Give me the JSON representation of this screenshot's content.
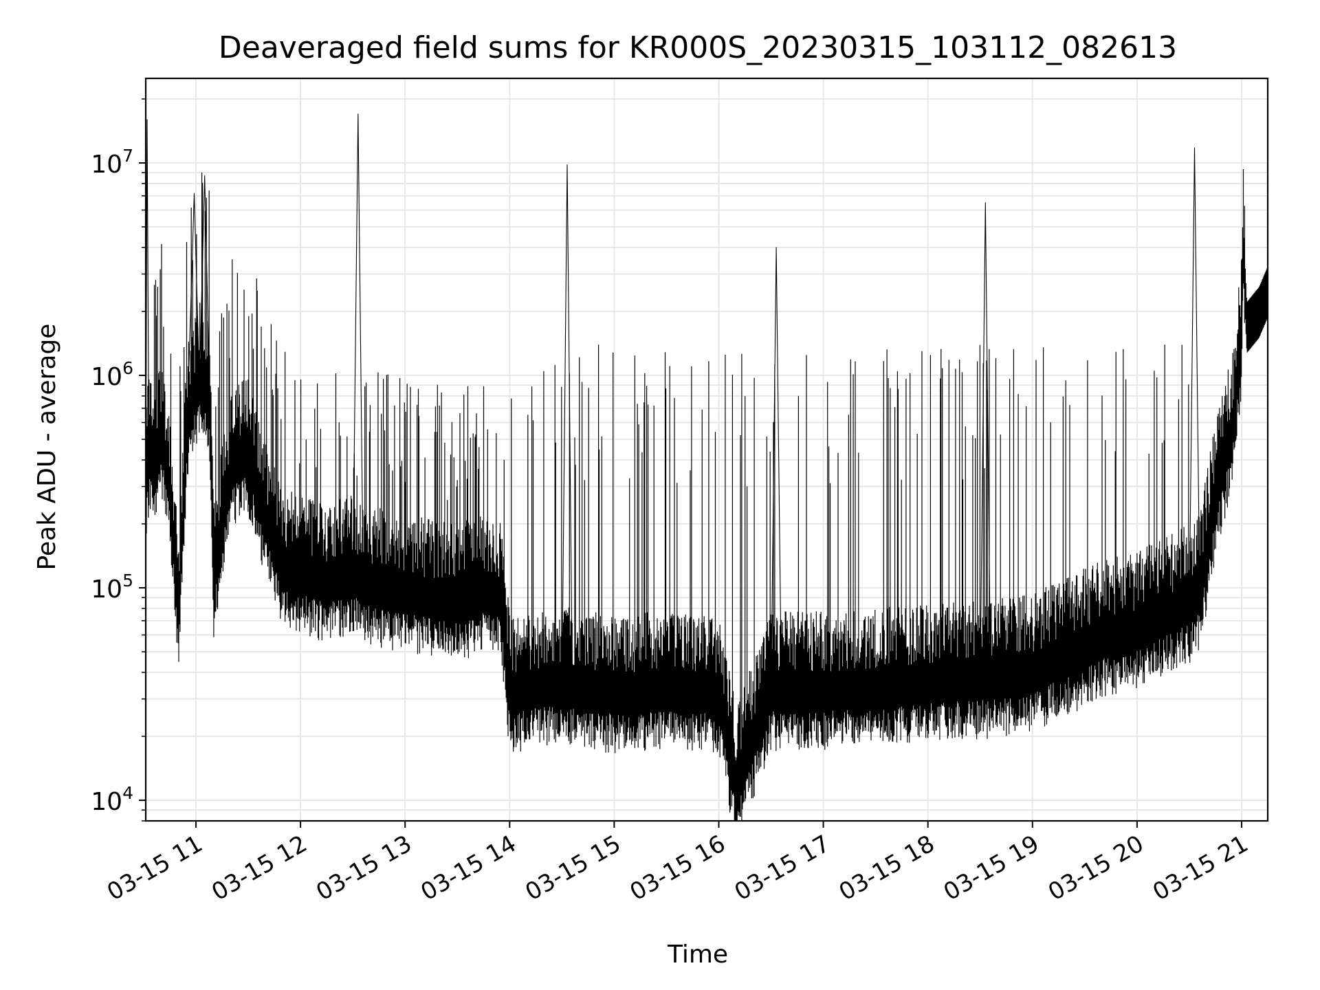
{
  "chart_data": {
    "type": "line",
    "title": "Deaveraged field sums for KR000S_20230315_103112_082613",
    "xlabel": "Time",
    "ylabel": "Peak ADU - average",
    "yscale": "log",
    "ylim": [
      8000,
      25000000
    ],
    "xlim": [
      "2023-03-15T10:31:12",
      "2023-03-15T21:15:00"
    ],
    "x_ticks": [
      {
        "t": "2023-03-15T11:00",
        "label": "03-15 11"
      },
      {
        "t": "2023-03-15T12:00",
        "label": "03-15 12"
      },
      {
        "t": "2023-03-15T13:00",
        "label": "03-15 13"
      },
      {
        "t": "2023-03-15T14:00",
        "label": "03-15 14"
      },
      {
        "t": "2023-03-15T15:00",
        "label": "03-15 15"
      },
      {
        "t": "2023-03-15T16:00",
        "label": "03-15 16"
      },
      {
        "t": "2023-03-15T17:00",
        "label": "03-15 17"
      },
      {
        "t": "2023-03-15T18:00",
        "label": "03-15 18"
      },
      {
        "t": "2023-03-15T19:00",
        "label": "03-15 19"
      },
      {
        "t": "2023-03-15T20:00",
        "label": "03-15 20"
      },
      {
        "t": "2023-03-15T21:00",
        "label": "03-15 21"
      }
    ],
    "y_ticks": [
      {
        "value": 10000,
        "base": "10",
        "exp": "4"
      },
      {
        "value": 100000,
        "base": "10",
        "exp": "5"
      },
      {
        "value": 1000000,
        "base": "10",
        "exp": "6"
      },
      {
        "value": 10000000,
        "base": "10",
        "exp": "7"
      }
    ],
    "grid": "both (major and minor)",
    "line_color": "#000000",
    "grid_color": "#e5e5e5",
    "series": [
      {
        "values": [
          [
            "2023-03-15T10:31:12",
            300000
          ],
          [
            "2023-03-15T10:32:00",
            16000000
          ],
          [
            "2023-03-15T10:33:00",
            400000
          ],
          [
            "2023-03-15T10:36:00",
            350000
          ],
          [
            "2023-03-15T10:40:00",
            500000
          ],
          [
            "2023-03-15T10:45:00",
            280000
          ],
          [
            "2023-03-15T10:50:00",
            70000
          ],
          [
            "2023-03-15T10:55:00",
            600000
          ],
          [
            "2023-03-15T10:59:00",
            7200000
          ],
          [
            "2023-03-15T11:02:00",
            900000
          ],
          [
            "2023-03-15T11:05:00",
            8700000
          ],
          [
            "2023-03-15T11:08:00",
            700000
          ],
          [
            "2023-03-15T11:10:00",
            100000
          ],
          [
            "2023-03-15T11:20:00",
            350000
          ],
          [
            "2023-03-15T11:30:00",
            400000
          ],
          [
            "2023-03-15T11:40:00",
            200000
          ],
          [
            "2023-03-15T11:50:00",
            120000
          ],
          [
            "2023-03-15T12:00:00",
            110000
          ],
          [
            "2023-03-15T12:15:00",
            100000
          ],
          [
            "2023-03-15T12:30:00",
            110000
          ],
          [
            "2023-03-15T12:33:00",
            17000000
          ],
          [
            "2023-03-15T12:36:00",
            100000
          ],
          [
            "2023-03-15T12:45:00",
            95000
          ],
          [
            "2023-03-15T13:00:00",
            90000
          ],
          [
            "2023-03-15T13:15:00",
            85000
          ],
          [
            "2023-03-15T13:30:00",
            80000
          ],
          [
            "2023-03-15T13:45:00",
            90000
          ],
          [
            "2023-03-15T13:55:00",
            85000
          ],
          [
            "2023-03-15T14:00:00",
            30000
          ],
          [
            "2023-03-15T14:15:00",
            32000
          ],
          [
            "2023-03-15T14:30:00",
            33000
          ],
          [
            "2023-03-15T14:33:00",
            9800000
          ],
          [
            "2023-03-15T14:36:00",
            32000
          ],
          [
            "2023-03-15T15:00:00",
            30000
          ],
          [
            "2023-03-15T15:30:00",
            31000
          ],
          [
            "2023-03-15T16:00:00",
            30000
          ],
          [
            "2023-03-15T16:10:00",
            11000
          ],
          [
            "2023-03-15T16:30:00",
            31000
          ],
          [
            "2023-03-15T16:33:00",
            4000000
          ],
          [
            "2023-03-15T16:36:00",
            31000
          ],
          [
            "2023-03-15T17:00:00",
            31000
          ],
          [
            "2023-03-15T17:30:00",
            32000
          ],
          [
            "2023-03-15T18:00:00",
            34000
          ],
          [
            "2023-03-15T18:30:00",
            35000
          ],
          [
            "2023-03-15T18:33:00",
            6500000
          ],
          [
            "2023-03-15T18:36:00",
            35000
          ],
          [
            "2023-03-15T19:00:00",
            38000
          ],
          [
            "2023-03-15T19:20:00",
            45000
          ],
          [
            "2023-03-15T19:40:00",
            55000
          ],
          [
            "2023-03-15T20:00:00",
            60000
          ],
          [
            "2023-03-15T20:30:00",
            80000
          ],
          [
            "2023-03-15T20:33:00",
            11800000
          ],
          [
            "2023-03-15T20:36:00",
            90000
          ],
          [
            "2023-03-15T20:45:00",
            250000
          ],
          [
            "2023-03-15T20:55:00",
            550000
          ],
          [
            "2023-03-15T21:00:00",
            1500000
          ],
          [
            "2023-03-15T21:01:00",
            3900000
          ],
          [
            "2023-03-15T21:03:00",
            1700000
          ],
          [
            "2023-03-15T21:10:00",
            2000000
          ],
          [
            "2023-03-15T21:15:00",
            2500000
          ]
        ]
      }
    ]
  }
}
